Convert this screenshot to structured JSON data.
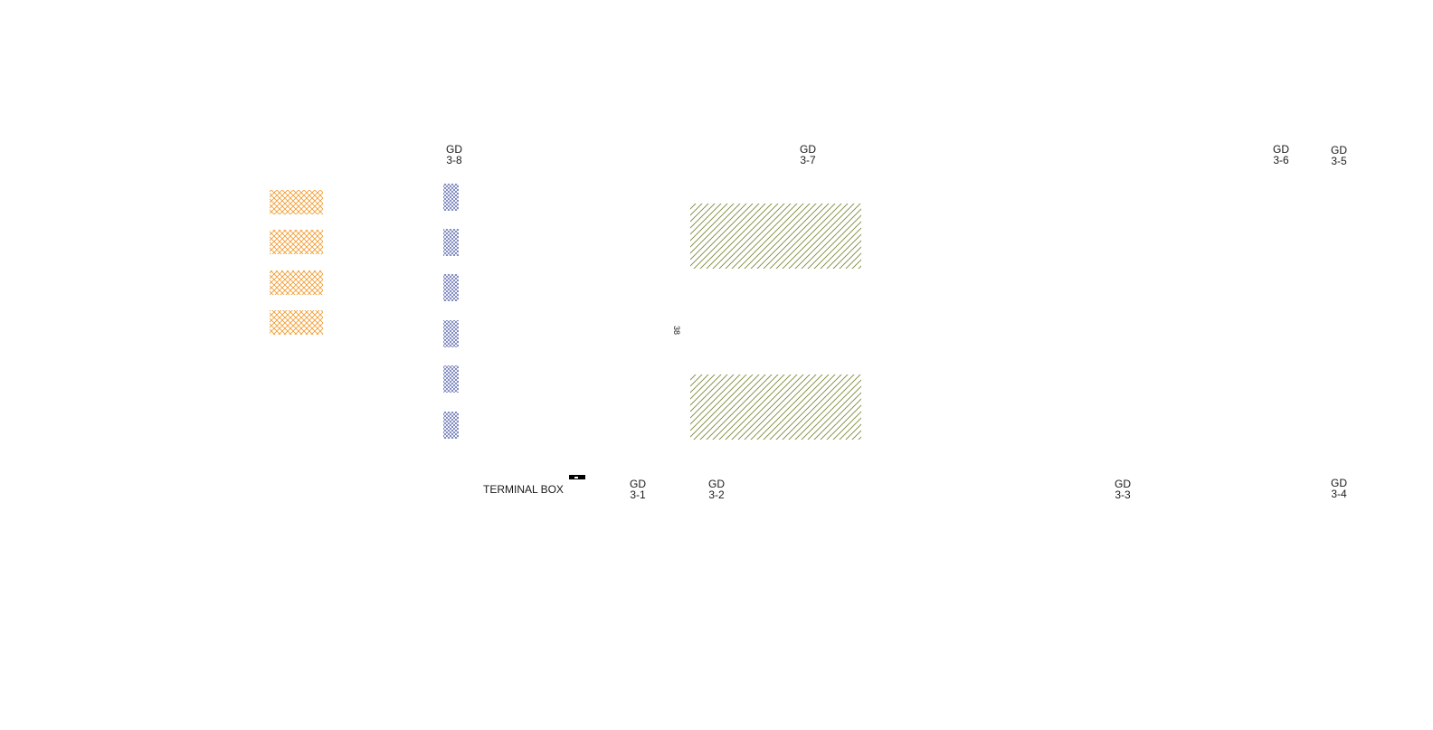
{
  "drawing": {
    "grid_labels": [
      {
        "id": "gd-3-8",
        "top": "GD",
        "bottom": "3-8"
      },
      {
        "id": "gd-3-7",
        "top": "GD",
        "bottom": "3-7"
      },
      {
        "id": "gd-3-6",
        "top": "GD",
        "bottom": "3-6"
      },
      {
        "id": "gd-3-5",
        "top": "GD",
        "bottom": "3-5"
      },
      {
        "id": "gd-3-1",
        "top": "GD",
        "bottom": "3-1"
      },
      {
        "id": "gd-3-2",
        "top": "GD",
        "bottom": "3-2"
      },
      {
        "id": "gd-3-3",
        "top": "GD",
        "bottom": "3-3"
      },
      {
        "id": "gd-3-4",
        "top": "GD",
        "bottom": "3-4"
      }
    ],
    "terminal_box_label": "TERMINAL BOX",
    "vertical_tag": "38",
    "colors": {
      "orange_hatch": "#f39a2c",
      "blue_hatch": "#3f4fa0",
      "olive_hatch": "#7d8a3a",
      "line": "#000000"
    }
  }
}
